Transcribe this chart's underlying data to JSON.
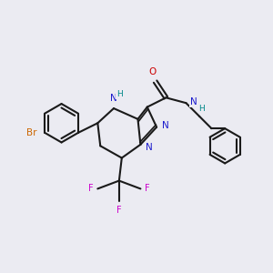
{
  "background_color": "#ebebf2",
  "bond_color": "#1a1a1a",
  "bond_width": 1.5,
  "atom_colors": {
    "Br": "#cc6600",
    "N": "#1a1acc",
    "O": "#cc0000",
    "F": "#cc00cc",
    "H": "#008888",
    "C": "#1a1a1a"
  },
  "figsize": [
    3.0,
    3.0
  ],
  "dpi": 100
}
